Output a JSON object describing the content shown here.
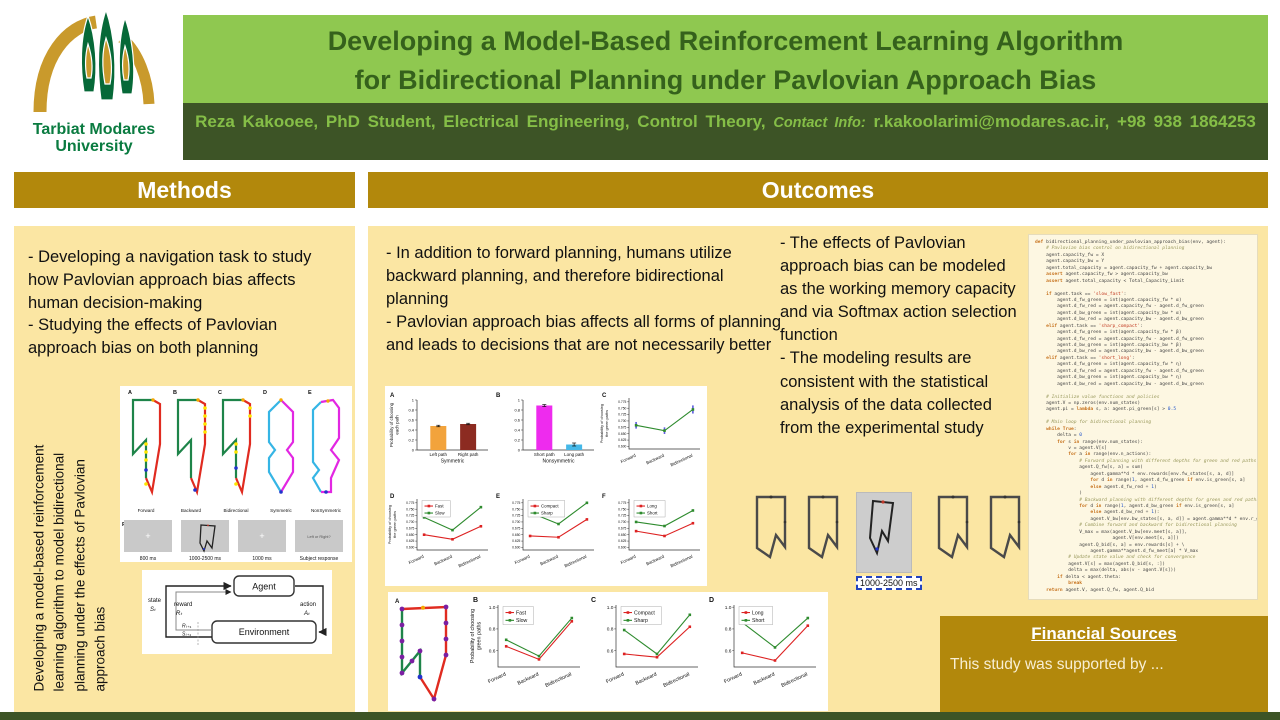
{
  "poster": {
    "logo": {
      "name1": "Tarbiat Modares",
      "name2": "University"
    },
    "title_line1": "Developing a Model-Based Reinforcement Learning Algorithm",
    "title_line2": "for Bidirectional Planning under Pavlovian Approach Bias",
    "author": "Reza Kakooee,  PhD Student,  Electrical Engineering,  Control Theory,",
    "contact_label": "Contact Info:",
    "contact": "r.kakoolarimi@modares.ac.ir, +98 938 1864253",
    "colors": {
      "header_green": "#8FC850",
      "dark_green": "#3D5426",
      "gold": "#B2880C",
      "panel_yellow": "#FBE6A3"
    }
  },
  "methods": {
    "heading": "Methods",
    "bullet1": "- Developing a navigation task to study how Pavlovian approach bias affects human decision-making",
    "bullet2": "- Studying the effects of Pavlovian approach bias on both planning",
    "vertical_note": "Developing a model-based reinforcement learning algorithm to model bidirectional planning under the effects of Pavlovian approach bias",
    "maze_figure": {
      "panel_letters": [
        "A",
        "B",
        "C",
        "D",
        "E"
      ],
      "panel_labels": [
        "Forward",
        "Backward",
        "Bidirectional",
        "Symmetric",
        "NonSymmetric"
      ],
      "trial_letter": "F",
      "trial_boxes": [
        {
          "content": "+",
          "label": "800 ms"
        },
        {
          "content": "maze",
          "label": "1000-2500 ms"
        },
        {
          "content": "+",
          "label": "1000 ms"
        },
        {
          "content": "Left or Right?",
          "label": "Subject response"
        }
      ]
    },
    "rl_diagram": {
      "agent": "Agent",
      "environment": "Environment",
      "state_label": "state",
      "state_sym": "Sₜ",
      "reward_label": "reward",
      "reward_sym": "Rₜ",
      "action_label": "action",
      "action_sym": "Aₜ",
      "next_reward": "Rₜ₊₁",
      "next_state": "Sₜ₊₁"
    }
  },
  "outcomes": {
    "heading": "Outcomes",
    "mid_bullet1": "- In addition to forward planning, humans utilize backward planning, and therefore bidirectional planning",
    "mid_bullet2": "- Pavlovian approach bias affects all forms of planning and leads to decisions that are not necessarily better",
    "right_bullet1": "- The effects of Pavlovian approach bias can be modeled as the working memory capacity and via Softmax action selection function",
    "right_bullet2": "- The modeling results are consistent with the statistical analysis of the data collected from the experimental study",
    "maze_row_label": "1000-2500 ms",
    "financial": {
      "heading": "Financial Sources",
      "body": "This study was supported by ..."
    }
  },
  "chart_data": {
    "figure1": {
      "panels": [
        {
          "letter": "A",
          "type": "bar",
          "categories": [
            "Left path",
            "Right path"
          ],
          "values": [
            0.48,
            0.52
          ],
          "errors": [
            0.015,
            0.015
          ],
          "colors": [
            "#F2A33C",
            "#8C2B21"
          ],
          "xlabel": "Symmetric",
          "ylabel": "Probability of choosing\neach path",
          "ylim": [
            0,
            1
          ],
          "yticks": [
            0,
            0.2,
            0.4,
            0.6,
            0.8,
            1
          ]
        },
        {
          "letter": "B",
          "type": "bar",
          "categories": [
            "Short path",
            "Long path"
          ],
          "values": [
            0.89,
            0.11
          ],
          "errors": [
            0.02,
            0.03
          ],
          "colors": [
            "#EE2BEE",
            "#45B8E8"
          ],
          "xlabel": "Nonsymmetric",
          "ylim": [
            0,
            1
          ],
          "yticks": [
            0,
            0.2,
            0.4,
            0.6,
            0.8,
            1
          ]
        },
        {
          "letter": "C",
          "type": "line",
          "categories": [
            "Forward",
            "Backward",
            "Bidirectional"
          ],
          "series": [
            {
              "name": "",
              "color": "#2E8B2E",
              "values": [
                0.683,
                0.662,
                0.745
              ],
              "errors": [
                0.013,
                0.013,
                0.016
              ],
              "errcolor": "#5B5BDD"
            }
          ],
          "ylabel": "Probability of choosing\nthe green paths",
          "ylim": [
            0.59,
            0.79
          ],
          "yticks": [
            0.6,
            0.625,
            0.65,
            0.675,
            0.7,
            0.725,
            0.75,
            0.775
          ]
        },
        {
          "letter": "D",
          "type": "line",
          "categories": [
            "Forward",
            "Backward",
            "Bidirectional"
          ],
          "series": [
            {
              "name": "Fast",
              "color": "#DD2222",
              "values": [
                0.65,
                0.632,
                0.683
              ]
            },
            {
              "name": "Slow",
              "color": "#2E8B2E",
              "values": [
                0.718,
                0.668,
                0.758
              ]
            }
          ],
          "ylabel": "Probability of choosing\nthe green paths",
          "ylim": [
            0.59,
            0.79
          ],
          "yticks": [
            0.6,
            0.625,
            0.65,
            0.675,
            0.7,
            0.725,
            0.75,
            0.775
          ]
        },
        {
          "letter": "E",
          "type": "line",
          "categories": [
            "Forward",
            "Backward",
            "Bidirectional"
          ],
          "series": [
            {
              "name": "Compact",
              "color": "#DD2222",
              "values": [
                0.645,
                0.64,
                0.71
              ]
            },
            {
              "name": "Sharp",
              "color": "#2E8B2E",
              "values": [
                0.737,
                0.692,
                0.775
              ]
            }
          ],
          "ylim": [
            0.59,
            0.79
          ],
          "yticks": [
            0.6,
            0.625,
            0.65,
            0.675,
            0.7,
            0.725,
            0.75,
            0.775
          ]
        },
        {
          "letter": "F",
          "type": "line",
          "categories": [
            "Forward",
            "Backward",
            "Bidirectional"
          ],
          "series": [
            {
              "name": "Long",
              "color": "#DD2222",
              "values": [
                0.664,
                0.645,
                0.695
              ]
            },
            {
              "name": "Short",
              "color": "#2E8B2E",
              "values": [
                0.7,
                0.684,
                0.745
              ]
            }
          ],
          "ylim": [
            0.59,
            0.79
          ],
          "yticks": [
            0.6,
            0.625,
            0.65,
            0.675,
            0.7,
            0.725,
            0.75,
            0.775
          ]
        }
      ]
    },
    "figure2": {
      "maze_letter": "A",
      "panels": [
        {
          "letter": "B",
          "type": "line",
          "categories": [
            "Forward",
            "Backward",
            "Bidirectional"
          ],
          "series": [
            {
              "name": "Fast",
              "color": "#DD2222",
              "values": [
                0.64,
                0.52,
                0.87
              ]
            },
            {
              "name": "Slow",
              "color": "#2E8B2E",
              "values": [
                0.7,
                0.55,
                0.9
              ]
            }
          ],
          "ylabel": "Probability of choosing\ngreen paths",
          "ylim": [
            0.45,
            1.02
          ],
          "yticks": [
            0.6,
            0.8,
            1.0
          ]
        },
        {
          "letter": "C",
          "type": "line",
          "categories": [
            "Forward",
            "Backward",
            "Bidirectional"
          ],
          "series": [
            {
              "name": "Compact",
              "color": "#DD2222",
              "values": [
                0.57,
                0.54,
                0.82
              ]
            },
            {
              "name": "Sharp",
              "color": "#2E8B2E",
              "values": [
                0.79,
                0.57,
                0.93
              ]
            }
          ],
          "ylim": [
            0.45,
            1.02
          ],
          "yticks": [
            0.6,
            0.8,
            1.0
          ]
        },
        {
          "letter": "D",
          "type": "line",
          "categories": [
            "Forward",
            "Backward",
            "Bidirectional"
          ],
          "series": [
            {
              "name": "Long",
              "color": "#DD2222",
              "values": [
                0.58,
                0.51,
                0.83
              ]
            },
            {
              "name": "Short",
              "color": "#2E8B2E",
              "values": [
                0.86,
                0.63,
                0.9
              ]
            }
          ],
          "ylim": [
            0.45,
            1.02
          ],
          "yticks": [
            0.6,
            0.8,
            1.0
          ]
        }
      ]
    }
  },
  "code_panel": {
    "lines": [
      "def bidirectional_planning_under_pavlovian_approach_bias(env, agent):",
      "    # Pavlovian bias control on bidirectional planning",
      "    agent.capacity_fw = X",
      "    agent.capacity_bw = Y",
      "    agent.total_capacity = agent.capacity_fw + agent.capacity_bw",
      "    assert agent.capacity_fw > agent.capacity_bw",
      "    assert agent.total_capacity < Total_Capacity_Limit",
      "",
      "    if agent.task == 'slow_fast':",
      "        agent.d_fw_green = int(agent.capacity_fw * α)",
      "        agent.d_fw_red = agent.capacity_fw - agent.d_fw_green",
      "        agent.d_bw_green = int(agent.capacity_bw * α)",
      "        agent.d_bw_red = agent.capacity_bw - agent.d_bw_green",
      "    elif agent.task == 'sharp_compact':",
      "        agent.d_fw_green = int(agent.capacity_fw * β)",
      "        agent.d_fw_red = agent.capacity_fw - agent.d_fw_green",
      "        agent.d_bw_green = int(agent.capacity_bw * β)",
      "        agent.d_bw_red = agent.capacity_bw - agent.d_bw_green",
      "    elif agent.task == 'short_long':",
      "        agent.d_fw_green = int(agent.capacity_fw * η)",
      "        agent.d_fw_red = agent.capacity_fw - agent.d_fw_green",
      "        agent.d_bw_green = int(agent.capacity_bw * η)",
      "        agent.d_bw_red = agent.capacity_bw - agent.d_bw_green",
      "",
      "    # Initialize value functions and policies",
      "    agent.V = np.zeros(env.num_states)",
      "    agent.pi = lambda s, a: agent.pi_green[s] > 0.5",
      "",
      "    # Main loop for bidirectional planning",
      "    while True:",
      "        delta = 0",
      "        for s in range(env.num_states):",
      "            v = agent.V[s]",
      "            for a in range(env.n_actions):",
      "                # Forward planning with different depths for green and red paths",
      "                agent.Q_fw[s, a] = sum(",
      "                    agent.gamma**d * env.rewards[env.fw_states[s, a, d]]",
      "                    for d in range(1, agent.d_fw_green if env.is_green[s, a]",
      "                    else agent.d_fw_red + 1)",
      "                )",
      "                # Backward planning with different depths for green and red paths",
      "                for d in range(1, agent.d_bw_green if env.is_green[s, a]",
      "                    else agent.d_bw_red + 1):",
      "                    agent.V_bw[env.bw_states[s, a, d]] = agent.gamma**d * env.r_goal",
      "                # Combine forward and backward for bidirectional planning",
      "                V_max = max(agent.V_bw[env.meet[s, a]],",
      "                            agent.V[env.meet[s, a]])",
      "                agent.Q_bid[s, a] = env.rewards[s] + \\",
      "                    agent.gamma**agent.d_fw_meet[a] * V_max",
      "            # Update state value and check for convergence",
      "            agent.V[s] = max(agent.Q_bid[s, :])",
      "            delta = max(delta, abs(v - agent.V[s]))",
      "        if delta < agent.theta:",
      "            break",
      "    return agent.V, agent.Q_fw, agent.Q_bid"
    ]
  }
}
